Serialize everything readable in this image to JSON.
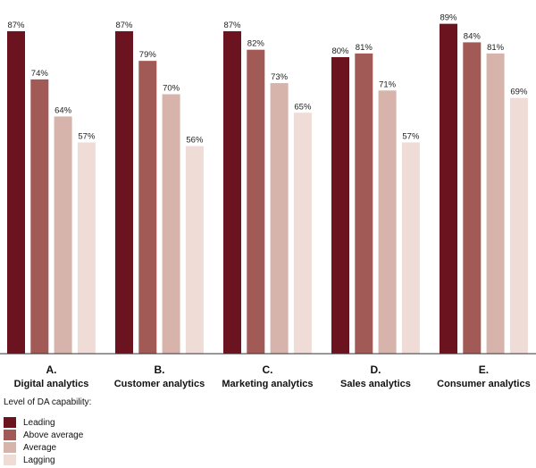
{
  "chart_data": {
    "type": "bar",
    "categories": [
      {
        "letter": "A.",
        "name": "Digital analytics"
      },
      {
        "letter": "B.",
        "name": "Customer analytics"
      },
      {
        "letter": "C.",
        "name": "Marketing analytics"
      },
      {
        "letter": "D.",
        "name": "Sales analytics"
      },
      {
        "letter": "E.",
        "name": "Consumer analytics"
      }
    ],
    "series": [
      {
        "name": "Leading",
        "color": "#6b1420",
        "values": [
          87,
          87,
          87,
          80,
          89
        ]
      },
      {
        "name": "Above average",
        "color": "#a25a56",
        "values": [
          74,
          79,
          82,
          81,
          84
        ]
      },
      {
        "name": "Average",
        "color": "#d7b4ab",
        "values": [
          64,
          70,
          73,
          71,
          81
        ]
      },
      {
        "name": "Lagging",
        "color": "#efdcd6",
        "values": [
          57,
          56,
          65,
          57,
          69
        ]
      }
    ],
    "value_suffix": "%",
    "ylim": [
      0,
      90
    ],
    "legend_title": "Level of DA capability:",
    "legend_position": "bottom-left",
    "grid": false
  }
}
